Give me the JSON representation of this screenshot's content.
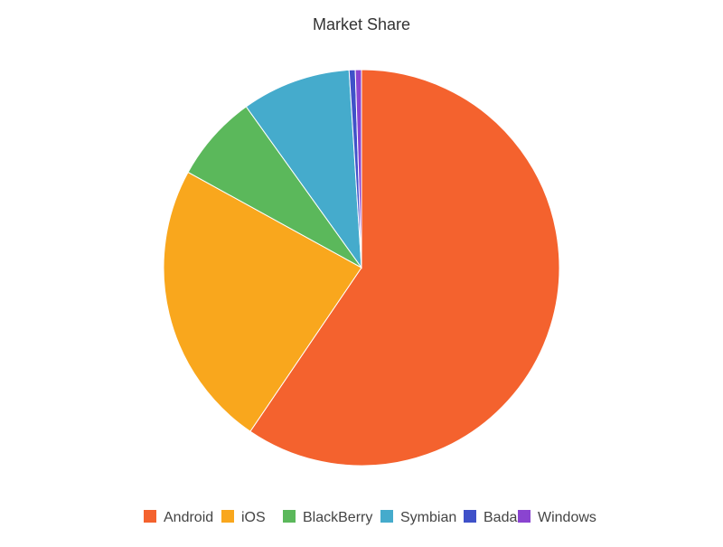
{
  "chart_data": {
    "type": "pie",
    "title": "Market Share",
    "series": [
      {
        "name": "",
        "categories": [
          "Android",
          "iOS",
          "BlackBerry",
          "Symbian",
          "Bada",
          "Windows"
        ],
        "values": [
          59.5,
          23.5,
          7.1,
          8.9,
          0.5,
          0.5
        ]
      }
    ],
    "colors": [
      "#f4622e",
      "#f9a71d",
      "#5bb85b",
      "#45abcc",
      "#3f51c9",
      "#8a44d0"
    ],
    "legend_position": "bottom",
    "slice_border_color": "#ffffff"
  }
}
